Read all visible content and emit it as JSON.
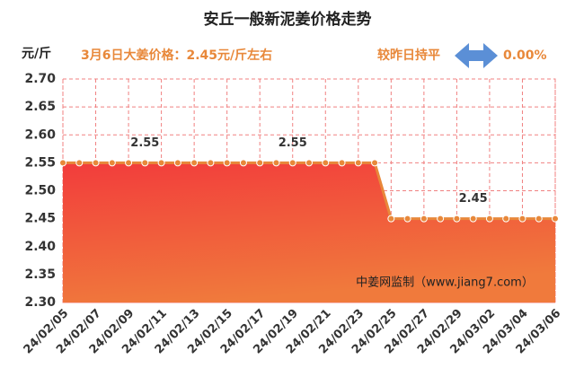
{
  "chart_data": {
    "type": "area-line",
    "title": "安丘一般新泥姜价格走势",
    "y_label": "元/斤",
    "subtitle": "3月6日大姜价格：2.45元/斤左右",
    "change_label": "较昨日持平",
    "change_value": "0.00%",
    "watermark": "中姜网监制（www.jiang7.com）",
    "categories": [
      "24/02/05",
      null,
      "24/02/07",
      null,
      "24/02/09",
      null,
      "24/02/11",
      null,
      "24/02/13",
      null,
      "24/02/15",
      null,
      "24/02/17",
      null,
      "24/02/19",
      null,
      "24/02/21",
      null,
      "24/02/23",
      null,
      "24/02/25",
      null,
      "24/02/27",
      null,
      "24/02/29",
      null,
      "24/03/02",
      null,
      "24/03/04",
      null,
      "24/03/06"
    ],
    "values": [
      2.55,
      2.55,
      2.55,
      2.55,
      2.55,
      2.55,
      2.55,
      2.55,
      2.55,
      2.55,
      2.55,
      2.55,
      2.55,
      2.55,
      2.55,
      2.55,
      2.55,
      2.55,
      2.55,
      2.55,
      2.45,
      2.45,
      2.45,
      2.45,
      2.45,
      2.45,
      2.45,
      2.45,
      2.45,
      2.45,
      2.45
    ],
    "labeled_points": [
      5,
      14,
      25
    ],
    "color": "#e8883a",
    "ylim": [
      2.3,
      2.7
    ],
    "yticks": [
      {
        "value": 2.3,
        "label": "2.30"
      },
      {
        "value": 2.35,
        "label": "2.35"
      },
      {
        "value": 2.4,
        "label": "2.40"
      },
      {
        "value": 2.45,
        "label": "2.45"
      },
      {
        "value": 2.5,
        "label": "2.50"
      },
      {
        "value": 2.55,
        "label": "2.55"
      },
      {
        "value": 2.6,
        "label": "2.60"
      },
      {
        "value": 2.65,
        "label": "2.65"
      },
      {
        "value": 2.7,
        "label": "2.70"
      }
    ],
    "grid": true
  }
}
